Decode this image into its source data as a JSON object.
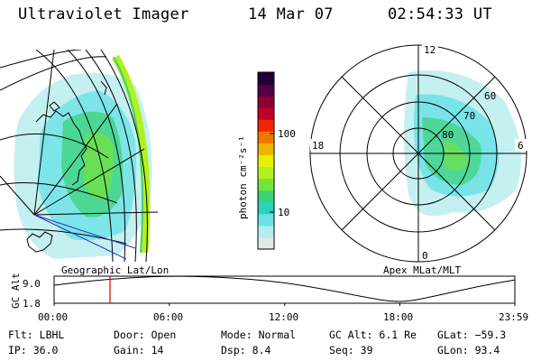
{
  "header": {
    "title": "Ultraviolet Imager",
    "date": "14 Mar 07",
    "time": "02:54:33 UT"
  },
  "colorbar": {
    "label": "photon cm⁻²s⁻¹",
    "ticks": [
      "100",
      "10"
    ],
    "colors": [
      "#e0e8e8",
      "#b4ecf0",
      "#6ae2e6",
      "#2ad2c0",
      "#3cd278",
      "#78e23c",
      "#b4f01e",
      "#e6f000",
      "#f0b400",
      "#f07800",
      "#f02800",
      "#c00028",
      "#8c0032",
      "#500046",
      "#1e0032"
    ]
  },
  "polar_plot": {
    "mlt_labels": [
      "12",
      "18",
      "6",
      "0"
    ],
    "lat_labels": [
      "60",
      "70",
      "80"
    ]
  },
  "timeline": {
    "top_left_label": "Geographic Lat/Lon",
    "top_right_label": "Apex MLat/MLT",
    "axis_title": "GC Alt",
    "y_ticks": [
      "9.0",
      "1.8"
    ],
    "x_ticks": [
      "00:00",
      "06:00",
      "12:00",
      "18:00",
      "23:59"
    ]
  },
  "chart_data": {
    "type": "line",
    "xlabel": "",
    "ylabel": "GC Alt",
    "x": [
      "00:00",
      "02:00",
      "04:00",
      "06:00",
      "08:00",
      "10:00",
      "12:00",
      "14:00",
      "16:00",
      "18:00",
      "20:00",
      "22:00",
      "23:59"
    ],
    "values": [
      6.6,
      7.8,
      8.6,
      9.0,
      8.9,
      8.3,
      7.3,
      5.6,
      3.6,
      1.8,
      3.9,
      6.2,
      8.0
    ],
    "ylim": [
      1.8,
      9.0
    ],
    "marker_time": "02:54:33"
  },
  "footer": {
    "rows": [
      [
        {
          "label": "Flt:",
          "value": "LBHL"
        },
        {
          "label": "Door:",
          "value": "Open"
        },
        {
          "label": "Mode:",
          "value": "Normal"
        },
        {
          "label": "GC Alt:",
          "value": "6.1 Re"
        },
        {
          "label": "GLat:",
          "value": "−59.3"
        }
      ],
      [
        {
          "label": "IP:",
          "value": "36.0"
        },
        {
          "label": "Gain:",
          "value": "14"
        },
        {
          "label": "Dsp:",
          "value": "8.4"
        },
        {
          "label": "Seq:",
          "value": "39"
        },
        {
          "label": "GLon:",
          "value": "93.4"
        }
      ]
    ]
  }
}
